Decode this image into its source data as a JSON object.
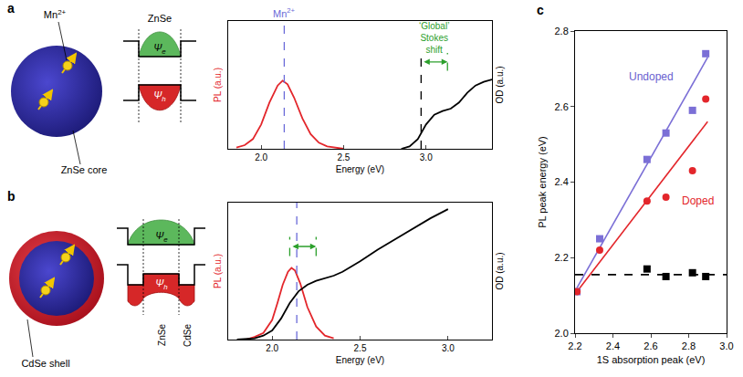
{
  "schematics": [
    {
      "panel": "a",
      "dopant": {
        "text": "Mn",
        "superscript": "2+"
      },
      "core": "ZnSe core",
      "band_labels": [
        "ZnSe"
      ],
      "electron": {
        "text": "Ψ",
        "subscript": "e"
      },
      "hole": {
        "text": "Ψ",
        "subscript": "h"
      }
    },
    {
      "panel": "b",
      "shell": "CdSe shell",
      "band_labels": [
        "ZnSe",
        "CdSe"
      ],
      "electron": {
        "text": "Ψ",
        "subscript": "e"
      },
      "hole": {
        "text": "Ψ",
        "subscript": "h"
      }
    }
  ],
  "chart_data": [
    {
      "type": "line",
      "x_title": "Energy (eV)",
      "y_title": "PL (a.u.)",
      "y2_title": "OD (a.u.)",
      "xlim": [
        1.8,
        3.4
      ],
      "xticks": [
        {
          "value": 2,
          "label": "2.0"
        },
        {
          "value": 2.5,
          "label": "2.5"
        },
        {
          "value": 3,
          "label": "3.0"
        }
      ],
      "ylim": [
        0,
        1.05
      ],
      "y2lim": [
        0,
        1.05
      ],
      "tick_labels": "x",
      "series": [
        {
          "color": "#e3262b",
          "x": [
            1.85,
            1.9,
            1.95,
            2.0,
            2.05,
            2.1,
            2.13,
            2.16,
            2.2,
            2.25,
            2.3,
            2.35,
            2.4,
            2.45,
            2.5
          ],
          "values": [
            0.01,
            0.03,
            0.08,
            0.2,
            0.38,
            0.52,
            0.56,
            0.53,
            0.42,
            0.25,
            0.12,
            0.05,
            0.02,
            0.01,
            0.0
          ]
        },
        {
          "color": "#000000",
          "axis": "y2",
          "x": [
            2.85,
            2.9,
            2.95,
            3.0,
            3.05,
            3.1,
            3.15,
            3.2,
            3.25,
            3.3,
            3.35,
            3.4
          ],
          "values": [
            0.0,
            0.02,
            0.08,
            0.2,
            0.28,
            0.31,
            0.33,
            0.38,
            0.46,
            0.52,
            0.55,
            0.57
          ]
        }
      ],
      "vlines": [
        {
          "x": 2.14,
          "color": "#6a6ad8",
          "line_style": "dashed",
          "label": {
            "text": "Mn",
            "superscript": "2+"
          }
        },
        {
          "x": 2.97,
          "color": "#000000",
          "line_style": "dashed"
        },
        {
          "x": 3.13,
          "color": "#2ca02c",
          "line_style": "dashed"
        }
      ],
      "span_arrow": {
        "from": 2.97,
        "to": 3.13,
        "color": "#2ca02c",
        "label": "‘Global’ Stokes shift"
      }
    },
    {
      "type": "line",
      "x_title": "Energy (eV)",
      "y_title": "PL (a.u.)",
      "y2_title": "OD (a.u.)",
      "xlim": [
        1.75,
        3.25
      ],
      "xticks": [
        {
          "value": 2,
          "label": "2.0"
        },
        {
          "value": 2.5,
          "label": "2.5"
        },
        {
          "value": 3,
          "label": "3.0"
        }
      ],
      "ylim": [
        0,
        1.05
      ],
      "y2lim": [
        0,
        1.05
      ],
      "tick_labels": "x",
      "series": [
        {
          "color": "#e3262b",
          "x": [
            1.85,
            1.9,
            1.95,
            2.0,
            2.03,
            2.06,
            2.09,
            2.11,
            2.13,
            2.16,
            2.2,
            2.25,
            2.3,
            2.35
          ],
          "values": [
            0.0,
            0.02,
            0.05,
            0.15,
            0.28,
            0.42,
            0.52,
            0.55,
            0.53,
            0.43,
            0.25,
            0.1,
            0.03,
            0.01
          ]
        },
        {
          "color": "#000000",
          "axis": "y2",
          "x": [
            1.8,
            1.9,
            1.95,
            2.0,
            2.05,
            2.1,
            2.15,
            2.2,
            2.25,
            2.3,
            2.35,
            2.4,
            2.5,
            2.6,
            2.7,
            2.8,
            2.9,
            3.0
          ],
          "values": [
            0.0,
            0.01,
            0.03,
            0.07,
            0.16,
            0.28,
            0.37,
            0.42,
            0.45,
            0.47,
            0.49,
            0.52,
            0.6,
            0.69,
            0.77,
            0.85,
            0.93,
            1.0
          ]
        }
      ],
      "vlines": [
        {
          "x": 2.14,
          "color": "#6a6ad8",
          "line_style": "dashed"
        },
        {
          "x": 2.1,
          "color": "#2ca02c",
          "line_style": "dashed"
        },
        {
          "x": 2.25,
          "color": "#2ca02c",
          "line_style": "dashed"
        }
      ],
      "span_arrow": {
        "from": 2.1,
        "to": 2.25,
        "color": "#2ca02c"
      }
    },
    {
      "type": "scatter",
      "panel": "c",
      "x_title": "1S absorption peak (eV)",
      "y_title": "PL peak energy (eV)",
      "xlim": [
        2.2,
        3.0
      ],
      "xticks": [
        {
          "value": 2.2,
          "label": "2.2"
        },
        {
          "value": 2.4,
          "label": "2.4"
        },
        {
          "value": 2.6,
          "label": "2.6"
        },
        {
          "value": 2.8,
          "label": "2.8"
        },
        {
          "value": 3,
          "label": "3.0"
        }
      ],
      "ylim": [
        2.0,
        2.8
      ],
      "yticks": [
        {
          "value": 2,
          "label": "2.0"
        },
        {
          "value": 2.2,
          "label": "2.2"
        },
        {
          "value": 2.4,
          "label": "2.4"
        },
        {
          "value": 2.6,
          "label": "2.6"
        },
        {
          "value": 2.8,
          "label": "2.8"
        }
      ],
      "series": [
        {
          "type": "line",
          "color": "#7b6fd6",
          "x": [
            2.21,
            2.9
          ],
          "values": [
            2.12,
            2.73
          ]
        },
        {
          "type": "line",
          "color": "#e3262b",
          "x": [
            2.21,
            2.9
          ],
          "values": [
            2.11,
            2.56
          ]
        },
        {
          "type": "line",
          "color": "#000000",
          "line_style": "dashed",
          "x": [
            2.2,
            3.0
          ],
          "values": [
            2.155,
            2.155
          ]
        },
        {
          "type": "scatter",
          "marker": "square",
          "color": "#7b6fd6",
          "x": [
            2.21,
            2.33,
            2.58,
            2.68,
            2.82,
            2.89
          ],
          "values": [
            2.11,
            2.25,
            2.46,
            2.53,
            2.59,
            2.74
          ]
        },
        {
          "type": "scatter",
          "marker": "circle",
          "color": "#e3262b",
          "x": [
            2.21,
            2.33,
            2.58,
            2.68,
            2.82,
            2.89
          ],
          "values": [
            2.11,
            2.22,
            2.35,
            2.36,
            2.43,
            2.62
          ]
        },
        {
          "type": "scatter",
          "marker": "square",
          "color": "#000000",
          "x": [
            2.58,
            2.68,
            2.82,
            2.89
          ],
          "values": [
            2.17,
            2.15,
            2.16,
            2.15
          ]
        }
      ],
      "annotations": [
        {
          "text": "Undoped",
          "x": 2.6,
          "y": 2.68,
          "color": "#6a5fd0"
        },
        {
          "text": "Doped",
          "x": 2.85,
          "y": 2.35,
          "color": "#e3262b"
        }
      ]
    }
  ]
}
